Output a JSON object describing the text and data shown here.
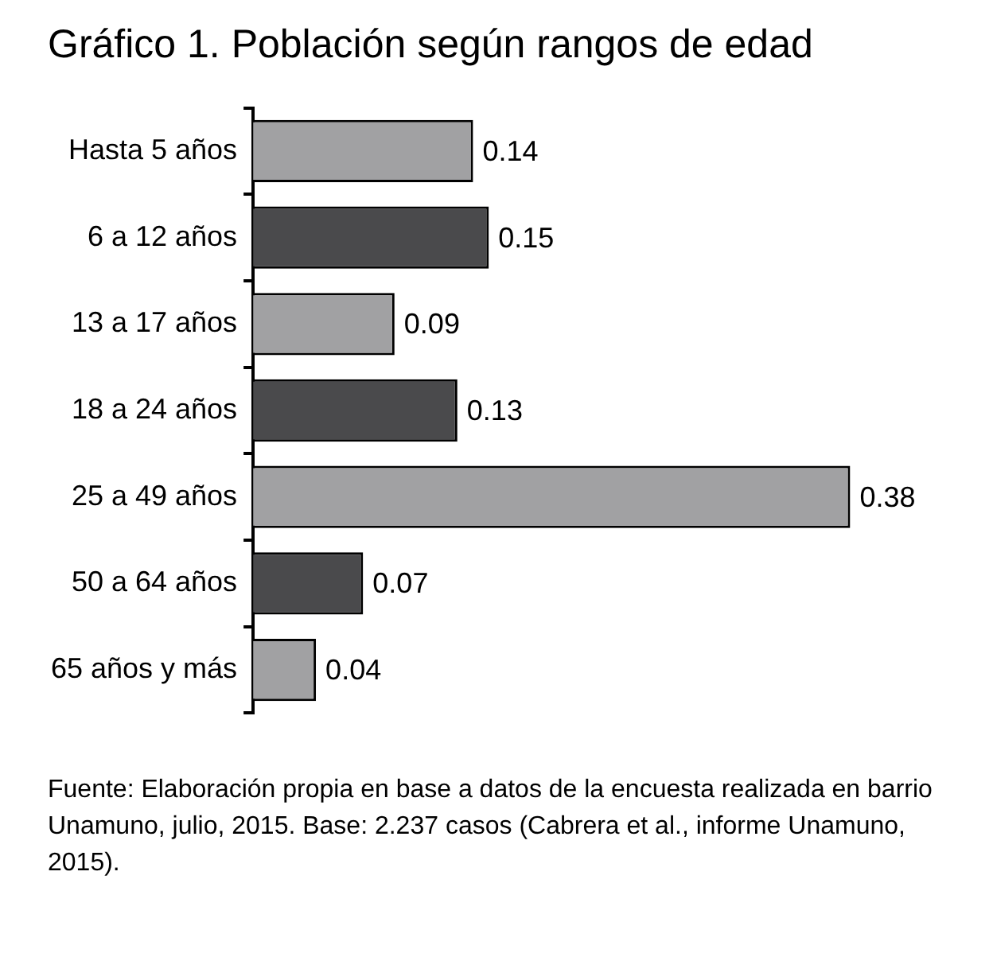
{
  "chart_data": {
    "type": "bar",
    "orientation": "horizontal",
    "title": "Gráfico 1. Población según rangos de edad",
    "categories": [
      "Hasta 5 años",
      "6 a 12 años",
      "13 a 17 años",
      "18 a 24 años",
      "25 a 49 años",
      "50 a 64 años",
      "65 años y más"
    ],
    "values": [
      0.14,
      0.15,
      0.09,
      0.13,
      0.38,
      0.07,
      0.04
    ],
    "colors": [
      "#a1a1a3",
      "#4a4a4c",
      "#a1a1a3",
      "#4a4a4c",
      "#a1a1a3",
      "#4a4a4c",
      "#a1a1a3"
    ],
    "data_labels": true,
    "legend": false,
    "tick_labels": "y",
    "annotations": [
      "Fuente: Elaboración propia en base a datos de la encuesta realizada en barrio Unamuno, julio, 2015. Base: 2.237 casos (Cabrera et al., informe Unamuno, 2015)."
    ]
  }
}
